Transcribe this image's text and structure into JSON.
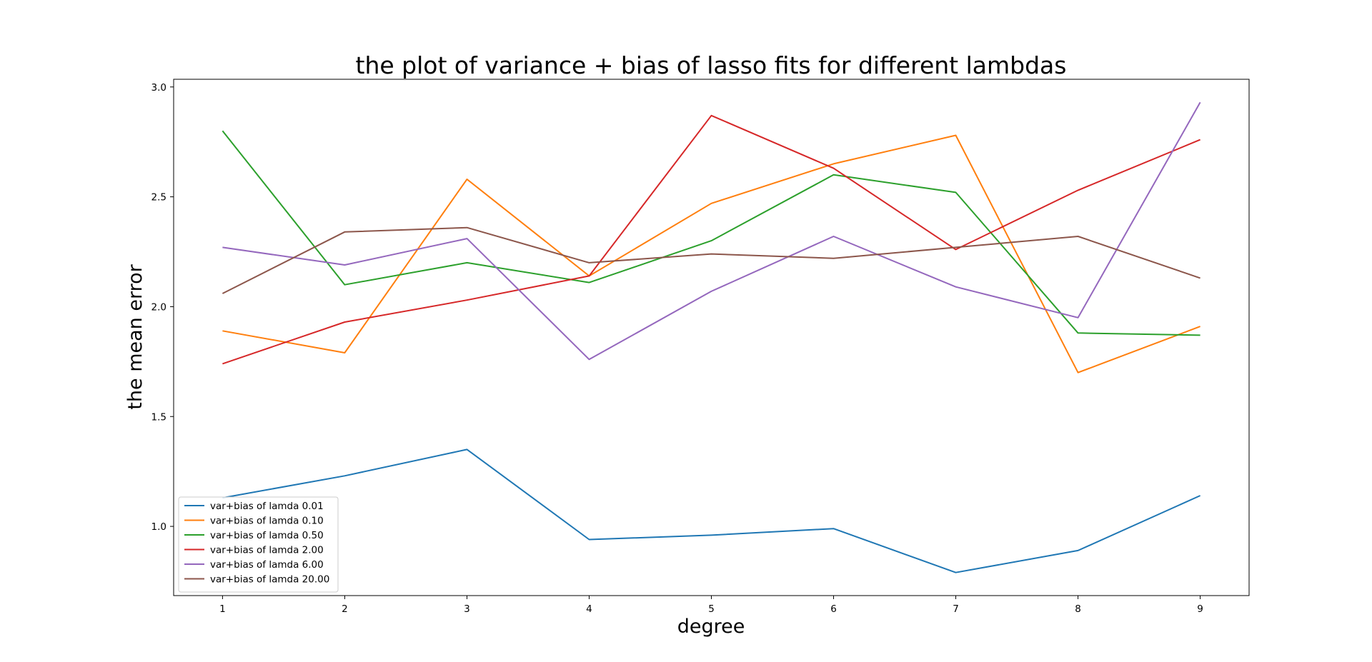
{
  "chart_data": {
    "type": "line",
    "title": "the plot of variance + bias of lasso fits for different lambdas",
    "xlabel": "degree",
    "ylabel": "the mean error",
    "x": [
      1,
      2,
      3,
      4,
      5,
      6,
      7,
      8,
      9
    ],
    "xlim": [
      0.6,
      9.4
    ],
    "ylim": [
      0.685,
      3.035
    ],
    "xticks": [
      "1",
      "2",
      "3",
      "4",
      "5",
      "6",
      "7",
      "8",
      "9"
    ],
    "yticks": [
      "1.0",
      "1.5",
      "2.0",
      "2.5",
      "3.0"
    ],
    "grid": false,
    "legend_position": "lower-left",
    "series": [
      {
        "name": "var+bias of lamda 0.01",
        "color": "#1f77b4",
        "values": [
          1.13,
          1.23,
          1.35,
          0.94,
          0.96,
          0.99,
          0.79,
          0.89,
          1.14
        ]
      },
      {
        "name": "var+bias of lamda 0.10",
        "color": "#ff7f0e",
        "values": [
          1.89,
          1.79,
          2.58,
          2.14,
          2.47,
          2.65,
          2.78,
          1.7,
          1.91
        ]
      },
      {
        "name": "var+bias of lamda 0.50",
        "color": "#2ca02c",
        "values": [
          2.8,
          2.1,
          2.2,
          2.11,
          2.3,
          2.6,
          2.52,
          1.88,
          1.87
        ]
      },
      {
        "name": "var+bias of lamda 2.00",
        "color": "#d62728",
        "values": [
          1.74,
          1.93,
          2.03,
          2.14,
          2.87,
          2.63,
          2.26,
          2.53,
          2.76
        ]
      },
      {
        "name": "var+bias of lamda 6.00",
        "color": "#9467bd",
        "values": [
          2.27,
          2.19,
          2.31,
          1.76,
          2.07,
          2.32,
          2.09,
          1.95,
          2.93
        ]
      },
      {
        "name": "var+bias of lamda 20.00",
        "color": "#8c564b",
        "values": [
          2.06,
          2.34,
          2.36,
          2.2,
          2.24,
          2.22,
          2.27,
          2.32,
          2.13
        ]
      }
    ]
  }
}
